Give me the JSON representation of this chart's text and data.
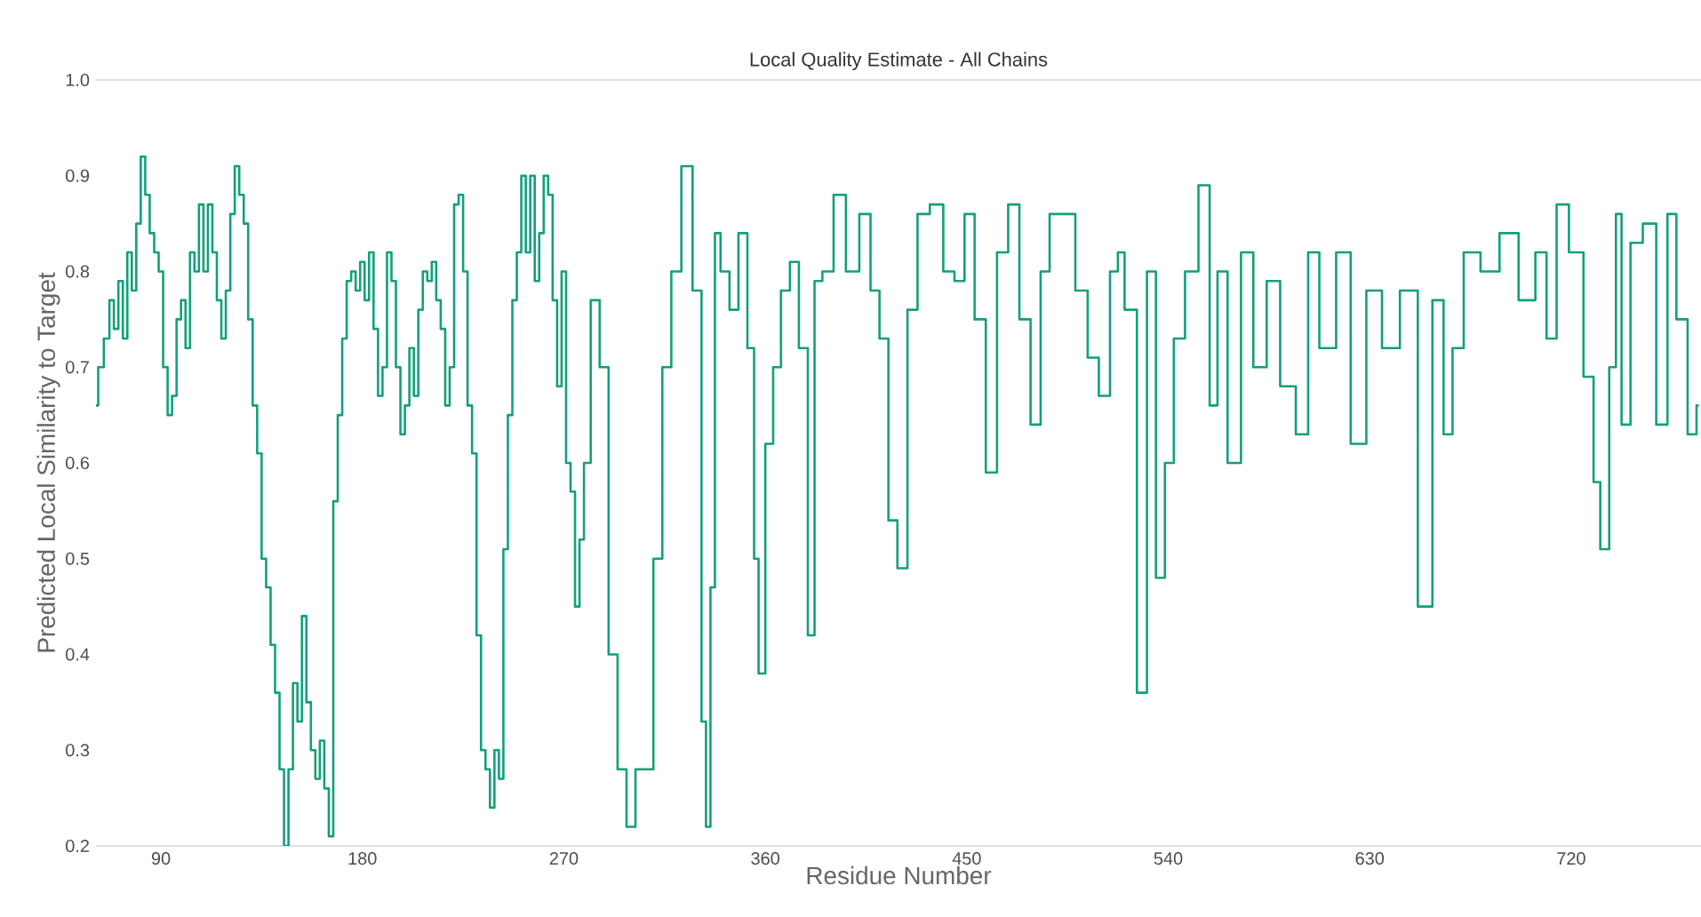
{
  "chart_data": {
    "type": "step",
    "title": "Local Quality Estimate - All Chains",
    "xlabel": "Residue Number",
    "ylabel": "Predicted Local Similarity to Target",
    "xlim": [
      61,
      778
    ],
    "ylim": [
      0.2,
      1.0
    ],
    "xticks": [
      90,
      180,
      270,
      360,
      450,
      540,
      630,
      720
    ],
    "yticks": [
      {
        "value": 0.2,
        "label": "0.2"
      },
      {
        "value": 0.3,
        "label": "0.3"
      },
      {
        "value": 0.4,
        "label": "0.4"
      },
      {
        "value": 0.5,
        "label": "0.5"
      },
      {
        "value": 0.6,
        "label": "0.6"
      },
      {
        "value": 0.7,
        "label": "0.7"
      },
      {
        "value": 0.8,
        "label": "0.8"
      },
      {
        "value": 0.9,
        "label": "0.9"
      },
      {
        "value": 1.0,
        "label": "1.0"
      }
    ],
    "grid": false,
    "series": [
      {
        "color": "#11a07a",
        "x": [
          61,
          63,
          66,
          68,
          70,
          72,
          74,
          76,
          78,
          80,
          82,
          84,
          86,
          88,
          90,
          92,
          94,
          96,
          98,
          100,
          102,
          104,
          106,
          108,
          110,
          112,
          114,
          116,
          118,
          120,
          122,
          124,
          126,
          128,
          130,
          132,
          134,
          136,
          138,
          140,
          142,
          144,
          146,
          148,
          150,
          152,
          154,
          156,
          158,
          160,
          162,
          164,
          166,
          168,
          170,
          172,
          174,
          176,
          178,
          180,
          182,
          184,
          186,
          188,
          190,
          192,
          194,
          196,
          198,
          200,
          202,
          204,
          206,
          208,
          210,
          212,
          214,
          216,
          218,
          220,
          222,
          224,
          226,
          228,
          230,
          232,
          234,
          236,
          238,
          240,
          242,
          244,
          246,
          248,
          250,
          252,
          254,
          256,
          258,
          260,
          262,
          264,
          266,
          268,
          270,
          272,
          274,
          276,
          278,
          280,
          284,
          288,
          292,
          296,
          300,
          304,
          308,
          312,
          316,
          320,
          325,
          330,
          333,
          334,
          337,
          338,
          342,
          346,
          350,
          354,
          356,
          358,
          362,
          365,
          369,
          373,
          377,
          381,
          383,
          388,
          393,
          399,
          405,
          409,
          413,
          417,
          421,
          426,
          430,
          437,
          442,
          447,
          451,
          456,
          461,
          466,
          471,
          476,
          481,
          485,
          489,
          496,
          501,
          507,
          511,
          517,
          518,
          523,
          529,
          532,
          537,
          540,
          545,
          550,
          557,
          560,
          564,
          569,
          576,
          580,
          588,
          592,
          602,
          603,
          612,
          618,
          625,
          632,
          639,
          648,
          655,
          661,
          665,
          669,
          675,
          684,
          692,
          701,
          707,
          711,
          716,
          722,
          729,
          731,
          735,
          739,
          741,
          744,
          749,
          755,
          761,
          765,
          769,
          775,
          777
        ],
        "values": [
          0.66,
          0.7,
          0.73,
          0.77,
          0.74,
          0.79,
          0.73,
          0.82,
          0.78,
          0.85,
          0.92,
          0.88,
          0.84,
          0.82,
          0.8,
          0.7,
          0.65,
          0.67,
          0.75,
          0.77,
          0.72,
          0.82,
          0.8,
          0.87,
          0.8,
          0.87,
          0.82,
          0.77,
          0.73,
          0.78,
          0.86,
          0.91,
          0.88,
          0.85,
          0.75,
          0.66,
          0.61,
          0.5,
          0.47,
          0.41,
          0.36,
          0.28,
          0.2,
          0.28,
          0.37,
          0.33,
          0.44,
          0.35,
          0.3,
          0.27,
          0.31,
          0.26,
          0.21,
          0.56,
          0.65,
          0.73,
          0.79,
          0.8,
          0.78,
          0.81,
          0.77,
          0.82,
          0.74,
          0.67,
          0.7,
          0.82,
          0.79,
          0.7,
          0.63,
          0.66,
          0.72,
          0.67,
          0.76,
          0.8,
          0.79,
          0.81,
          0.77,
          0.74,
          0.66,
          0.7,
          0.87,
          0.88,
          0.8,
          0.66,
          0.61,
          0.42,
          0.3,
          0.28,
          0.24,
          0.3,
          0.27,
          0.51,
          0.65,
          0.77,
          0.82,
          0.9,
          0.82,
          0.9,
          0.79,
          0.84,
          0.9,
          0.88,
          0.77,
          0.68,
          0.8,
          0.6,
          0.57,
          0.45,
          0.52,
          0.6,
          0.77,
          0.7,
          0.4,
          0.28,
          0.22,
          0.28,
          0.28,
          0.5,
          0.7,
          0.8,
          0.91,
          0.78,
          0.33,
          0.22,
          0.47,
          0.84,
          0.8,
          0.76,
          0.84,
          0.72,
          0.5,
          0.38,
          0.62,
          0.7,
          0.78,
          0.81,
          0.72,
          0.42,
          0.79,
          0.8,
          0.88,
          0.8,
          0.86,
          0.78,
          0.73,
          0.54,
          0.49,
          0.76,
          0.86,
          0.87,
          0.8,
          0.79,
          0.86,
          0.75,
          0.59,
          0.82,
          0.87,
          0.75,
          0.64,
          0.8,
          0.86,
          0.86,
          0.78,
          0.71,
          0.67,
          0.8,
          0.82,
          0.76,
          0.36,
          0.8,
          0.48,
          0.6,
          0.73,
          0.8,
          0.89,
          0.66,
          0.8,
          0.6,
          0.82,
          0.7,
          0.79,
          0.68,
          0.63,
          0.82,
          0.72,
          0.82,
          0.62,
          0.78,
          0.72,
          0.78,
          0.45,
          0.77,
          0.63,
          0.72,
          0.82,
          0.8,
          0.84,
          0.77,
          0.82,
          0.73,
          0.87,
          0.82,
          0.69,
          0.58,
          0.51,
          0.7,
          0.86,
          0.64,
          0.83,
          0.85,
          0.64,
          0.86,
          0.75,
          0.63,
          0.66
        ]
      }
    ]
  }
}
